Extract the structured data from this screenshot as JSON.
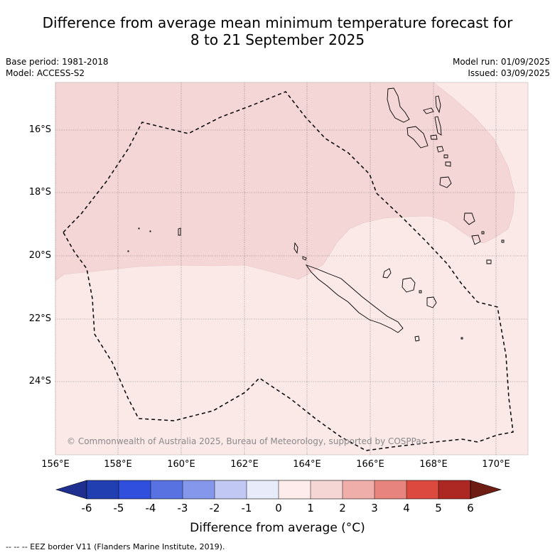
{
  "title": {
    "line1": "Difference from average mean minimum temperature forecast for",
    "line2": "8 to 21 September 2025"
  },
  "meta": {
    "base_period": "Base period: 1981-2018",
    "model": "Model: ACCESS-S2",
    "model_run": "Model run: 01/09/2025",
    "issued": "Issued: 03/09/2025"
  },
  "axes": {
    "lat_labels": [
      "16°S",
      "18°S",
      "20°S",
      "22°S",
      "24°S"
    ],
    "lon_labels": [
      "156°E",
      "158°E",
      "160°E",
      "162°E",
      "164°E",
      "166°E",
      "168°E",
      "170°E"
    ]
  },
  "copyright": "© Commonwealth of Australia 2025, Bureau of Meteorology, supported by COSPPac",
  "colorbar": {
    "labels": [
      "-6",
      "-5",
      "-4",
      "-3",
      "-2",
      "-1",
      "0",
      "1",
      "2",
      "3",
      "4",
      "5",
      "6"
    ],
    "colors": [
      "#1f2f8f",
      "#223fb2",
      "#2f4fdc",
      "#5872e2",
      "#8597ea",
      "#c0c8f3",
      "#e8ebfa",
      "#fdeceb",
      "#f6d5d5",
      "#f0aeab",
      "#e8847e",
      "#dc4a3f",
      "#ad2823",
      "#6e1d14"
    ],
    "title": "Difference from average (°C)"
  },
  "map_fill": {
    "light": "#fbe9e8",
    "medium": "#f5d6d6"
  },
  "footer": "--  --  -- EEZ border V11 (Flanders Marine Institute, 2019)."
}
